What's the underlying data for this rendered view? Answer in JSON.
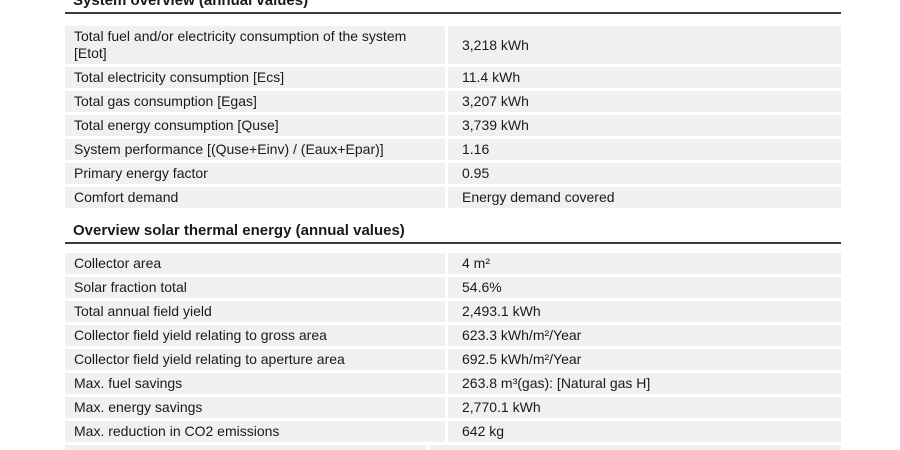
{
  "colors": {
    "row_bg": "#f0f0f1",
    "rule": "#3c3c3c",
    "text": "#1a1a1a",
    "page_bg": "#ffffff"
  },
  "sections": [
    {
      "title": "System overview (annual values)",
      "rows": [
        {
          "label": "Total fuel and/or electricity consumption of the system [Etot]",
          "value": "3,218 kWh"
        },
        {
          "label": "Total electricity consumption [Ecs]",
          "value": "11.4 kWh"
        },
        {
          "label": "Total gas consumption [Egas]",
          "value": "3,207 kWh"
        },
        {
          "label": "Total energy consumption [Quse]",
          "value": "3,739 kWh"
        },
        {
          "label": "System performance [(Quse+Einv) / (Eaux+Epar)]",
          "value": "1.16"
        },
        {
          "label": "Primary energy factor",
          "value": "0.95"
        },
        {
          "label": "Comfort demand",
          "value": "Energy demand covered"
        }
      ]
    },
    {
      "title": "Overview solar thermal energy (annual values)",
      "rows": [
        {
          "label": "Collector area",
          "value": "4 m²"
        },
        {
          "label": "Solar fraction total",
          "value": "54.6%"
        },
        {
          "label": "Total annual field yield",
          "value": "2,493.1 kWh"
        },
        {
          "label": "Collector field yield relating to gross area",
          "value": "623.3 kWh/m²/Year"
        },
        {
          "label": "Collector field yield relating to aperture area",
          "value": "692.5 kWh/m²/Year"
        },
        {
          "label": "Max. fuel savings",
          "value": "263.8 m³(gas): [Natural gas H]"
        },
        {
          "label": "Max. energy savings",
          "value": "2,770.1 kWh"
        },
        {
          "label": "Max. reduction in CO2 emissions",
          "value": "642 kg"
        }
      ]
    }
  ]
}
